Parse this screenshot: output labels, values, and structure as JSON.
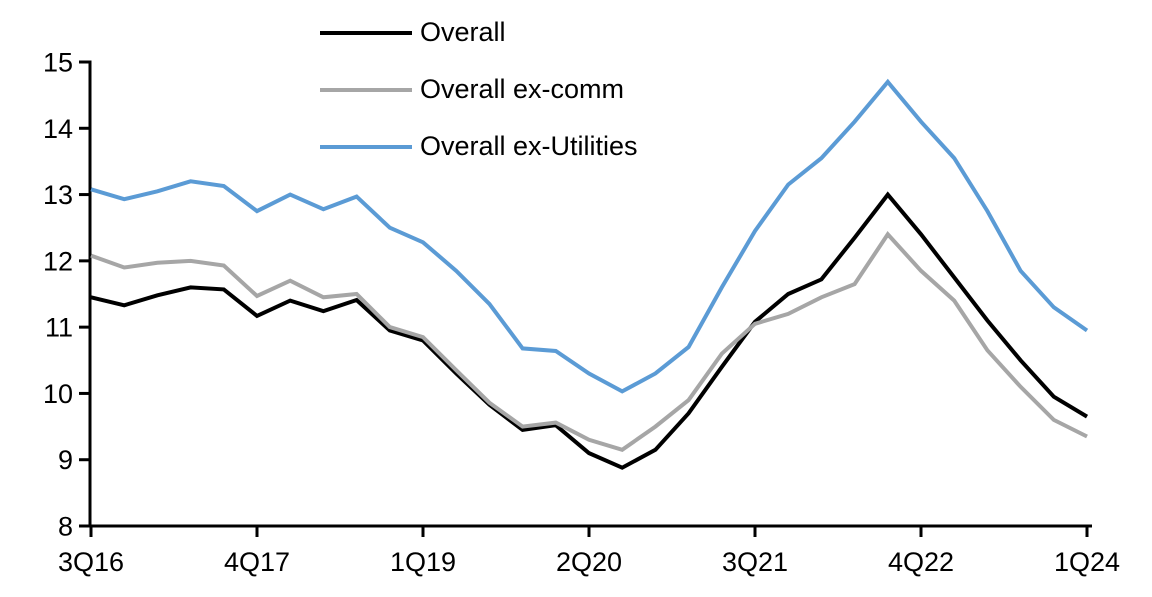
{
  "chart_data": {
    "type": "line",
    "title": "",
    "xlabel": "",
    "ylabel": "",
    "categories": [
      "3Q16",
      "4Q16",
      "1Q17",
      "2Q17",
      "3Q17",
      "4Q17",
      "1Q18",
      "2Q18",
      "3Q18",
      "4Q18",
      "1Q19",
      "2Q19",
      "3Q19",
      "4Q19",
      "1Q20",
      "2Q20",
      "3Q20",
      "4Q20",
      "1Q21",
      "2Q21",
      "3Q21",
      "4Q21",
      "1Q22",
      "2Q22",
      "3Q22",
      "4Q22",
      "1Q23",
      "2Q23",
      "3Q23",
      "4Q23",
      "1Q24"
    ],
    "x_tick_labels": [
      "3Q16",
      "4Q17",
      "1Q19",
      "2Q20",
      "3Q21",
      "4Q22",
      "1Q24"
    ],
    "x_tick_indices": [
      0,
      5,
      10,
      15,
      20,
      25,
      30
    ],
    "y_ticks": [
      8,
      9,
      10,
      11,
      12,
      13,
      14,
      15
    ],
    "ylim": [
      8,
      15
    ],
    "grid": false,
    "legend_position": "top-inside-left",
    "axis_color": "#000000",
    "series": [
      {
        "name": "Overall",
        "color": "#000000",
        "values": [
          11.45,
          11.33,
          11.48,
          11.6,
          11.57,
          11.17,
          11.4,
          11.24,
          11.41,
          10.95,
          10.8,
          10.3,
          9.83,
          9.45,
          9.52,
          9.1,
          8.88,
          9.15,
          9.7,
          10.4,
          11.08,
          11.5,
          11.72,
          12.35,
          13.0,
          12.4,
          11.75,
          11.1,
          10.5,
          9.95,
          9.65
        ]
      },
      {
        "name": "Overall ex-comm",
        "color": "#A6A6A6",
        "values": [
          12.08,
          11.9,
          11.97,
          12.0,
          11.93,
          11.47,
          11.7,
          11.45,
          11.5,
          11.0,
          10.85,
          10.35,
          9.86,
          9.5,
          9.56,
          9.3,
          9.15,
          9.5,
          9.9,
          10.6,
          11.05,
          11.2,
          11.45,
          11.65,
          12.4,
          11.85,
          11.4,
          10.65,
          10.1,
          9.6,
          9.35
        ]
      },
      {
        "name": "Overall ex-Utilities",
        "color": "#5B9BD5",
        "values": [
          13.08,
          12.93,
          13.05,
          13.2,
          13.13,
          12.75,
          13.0,
          12.78,
          12.97,
          12.5,
          12.28,
          11.85,
          11.35,
          10.68,
          10.64,
          10.3,
          10.03,
          10.3,
          10.7,
          11.6,
          12.45,
          13.15,
          13.55,
          14.1,
          14.7,
          14.1,
          13.55,
          12.75,
          11.85,
          11.3,
          10.95
        ]
      }
    ]
  }
}
